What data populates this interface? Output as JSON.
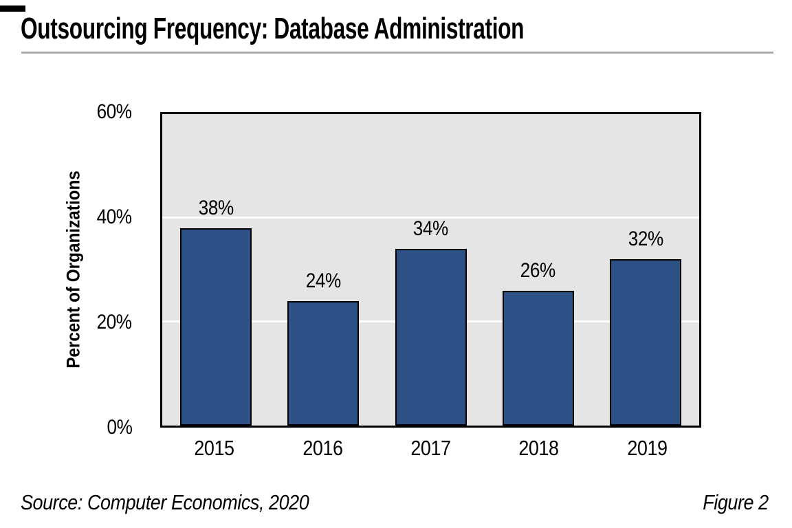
{
  "page": {
    "source_text": "Source: Computer Economics, 2020",
    "figure_label": "Figure 2"
  },
  "chart_data": {
    "type": "bar",
    "title": "Outsourcing Frequency: Database Administration",
    "categories": [
      "2015",
      "2016",
      "2017",
      "2018",
      "2019"
    ],
    "values": [
      38,
      24,
      34,
      26,
      32
    ],
    "value_labels": [
      "38%",
      "24%",
      "34%",
      "26%",
      "32%"
    ],
    "xlabel": "",
    "ylabel": "Percent of Organizations",
    "ylim": [
      0,
      60
    ],
    "yticks": [
      0,
      20,
      40,
      60
    ],
    "ytick_labels": [
      "0%",
      "20%",
      "40%",
      "60%"
    ],
    "gridlines": [
      20,
      40
    ],
    "grid": "horizontal white lines on gray plot background",
    "legend": "none",
    "colors": {
      "bar_fill": "#2d5187",
      "bar_border": "#000000",
      "plot_background": "#e5e5e5",
      "plot_border": "#000000",
      "gridline": "#ffffff",
      "text": "#000000",
      "title_underline": "#adadad",
      "page_background": "#ffffff"
    }
  }
}
